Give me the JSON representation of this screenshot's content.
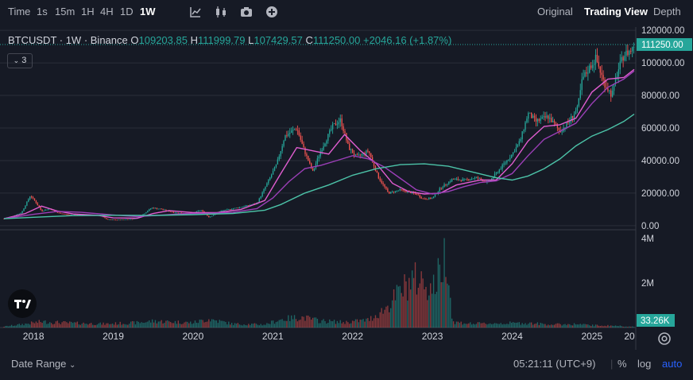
{
  "toolbar": {
    "intervals": [
      "Time",
      "1s",
      "15m",
      "1H",
      "4H",
      "1D",
      "1W"
    ],
    "active_interval": "1W",
    "icons": [
      "indicators-icon",
      "candle-type-icon",
      "camera-icon",
      "add-icon"
    ],
    "views": [
      "Original",
      "Trading View",
      "Depth"
    ],
    "active_view": "Trading View"
  },
  "legend": {
    "symbol": "BTCUSDT · 1W · Binance",
    "open_label": "O",
    "open": "109203.85",
    "high_label": "H",
    "high": "111999.79",
    "low_label": "L",
    "low": "107429.57",
    "close_label": "C",
    "close": "111250.00",
    "change": "+2046.16 (+1.87%)",
    "indicator_count": "3"
  },
  "colors": {
    "background": "#161a25",
    "up": "#26a69a",
    "down": "#ef5350",
    "ma_short": "#e05dd0",
    "ma_mid": "#9c3fb8",
    "ma_long": "#4cc3a8"
  },
  "chart_data": {
    "type": "candlestick",
    "interval": "1W",
    "price_axis": {
      "ticks": [
        "120000.00",
        "100000.00",
        "80000.00",
        "60000.00",
        "40000.00",
        "20000.00",
        "0.00"
      ],
      "range": [
        -2000,
        122000
      ],
      "last_price_label": "111250.00"
    },
    "time_axis": {
      "labels": [
        "2018",
        "2019",
        "2020",
        "2021",
        "2022",
        "2023",
        "2024",
        "2025",
        "20"
      ],
      "range": [
        2017.58,
        2025.55
      ]
    },
    "volume_axis": {
      "ticks": [
        "4M",
        "2M"
      ],
      "range": [
        0,
        4000000
      ],
      "last_volume_label": "33.26K"
    },
    "price_anchors": [
      [
        2017.63,
        4300
      ],
      [
        2017.75,
        6000
      ],
      [
        2017.85,
        8000
      ],
      [
        2017.96,
        18500
      ],
      [
        2018.02,
        15000
      ],
      [
        2018.1,
        9000
      ],
      [
        2018.2,
        10500
      ],
      [
        2018.3,
        8000
      ],
      [
        2018.45,
        6500
      ],
      [
        2018.6,
        6800
      ],
      [
        2018.85,
        6300
      ],
      [
        2018.92,
        3800
      ],
      [
        2019.05,
        3600
      ],
      [
        2019.25,
        4100
      ],
      [
        2019.35,
        6000
      ],
      [
        2019.48,
        11000
      ],
      [
        2019.6,
        10200
      ],
      [
        2019.75,
        8200
      ],
      [
        2019.95,
        7300
      ],
      [
        2020.1,
        9500
      ],
      [
        2020.2,
        5200
      ],
      [
        2020.35,
        9000
      ],
      [
        2020.6,
        11500
      ],
      [
        2020.8,
        13500
      ],
      [
        2020.95,
        28000
      ],
      [
        2021.05,
        38000
      ],
      [
        2021.15,
        55000
      ],
      [
        2021.3,
        60000
      ],
      [
        2021.38,
        48000
      ],
      [
        2021.5,
        33000
      ],
      [
        2021.6,
        46000
      ],
      [
        2021.75,
        61000
      ],
      [
        2021.85,
        65000
      ],
      [
        2021.95,
        48000
      ],
      [
        2022.05,
        42000
      ],
      [
        2022.2,
        46000
      ],
      [
        2022.32,
        30000
      ],
      [
        2022.45,
        20000
      ],
      [
        2022.6,
        22000
      ],
      [
        2022.8,
        19500
      ],
      [
        2022.88,
        16500
      ],
      [
        2023.0,
        16800
      ],
      [
        2023.1,
        23000
      ],
      [
        2023.25,
        28500
      ],
      [
        2023.4,
        28000
      ],
      [
        2023.55,
        29500
      ],
      [
        2023.7,
        26500
      ],
      [
        2023.85,
        35000
      ],
      [
        2024.0,
        44000
      ],
      [
        2024.1,
        52000
      ],
      [
        2024.2,
        69000
      ],
      [
        2024.3,
        64000
      ],
      [
        2024.45,
        67000
      ],
      [
        2024.6,
        58000
      ],
      [
        2024.7,
        63000
      ],
      [
        2024.82,
        72000
      ],
      [
        2024.88,
        90000
      ],
      [
        2024.97,
        97000
      ],
      [
        2025.05,
        103000
      ],
      [
        2025.15,
        88000
      ],
      [
        2025.25,
        80000
      ],
      [
        2025.32,
        94000
      ],
      [
        2025.4,
        105000
      ],
      [
        2025.5,
        108000
      ],
      [
        2025.53,
        111250
      ]
    ],
    "series": [
      {
        "name": "",
        "color_key": "ma_short",
        "points": [
          [
            2017.63,
            4300
          ],
          [
            2017.9,
            7500
          ],
          [
            2018.1,
            12000
          ],
          [
            2018.3,
            9000
          ],
          [
            2018.5,
            7200
          ],
          [
            2018.8,
            6400
          ],
          [
            2019.0,
            4800
          ],
          [
            2019.3,
            4600
          ],
          [
            2019.5,
            7500
          ],
          [
            2019.7,
            9300
          ],
          [
            2020.0,
            8000
          ],
          [
            2020.3,
            8000
          ],
          [
            2020.6,
            10000
          ],
          [
            2020.9,
            15500
          ],
          [
            2021.1,
            32000
          ],
          [
            2021.3,
            48000
          ],
          [
            2021.5,
            46000
          ],
          [
            2021.7,
            44000
          ],
          [
            2021.9,
            56000
          ],
          [
            2022.1,
            46000
          ],
          [
            2022.3,
            38000
          ],
          [
            2022.5,
            26000
          ],
          [
            2022.7,
            21000
          ],
          [
            2022.9,
            19500
          ],
          [
            2023.1,
            20000
          ],
          [
            2023.3,
            25000
          ],
          [
            2023.6,
            28000
          ],
          [
            2023.8,
            28000
          ],
          [
            2024.0,
            38000
          ],
          [
            2024.2,
            52000
          ],
          [
            2024.4,
            61000
          ],
          [
            2024.6,
            62000
          ],
          [
            2024.8,
            66000
          ],
          [
            2025.0,
            82000
          ],
          [
            2025.2,
            90000
          ],
          [
            2025.4,
            91000
          ],
          [
            2025.53,
            96000
          ]
        ]
      },
      {
        "name": "",
        "color_key": "ma_mid",
        "points": [
          [
            2017.63,
            4300
          ],
          [
            2018.0,
            7000
          ],
          [
            2018.3,
            8800
          ],
          [
            2018.6,
            8200
          ],
          [
            2019.0,
            6600
          ],
          [
            2019.3,
            5600
          ],
          [
            2019.6,
            6500
          ],
          [
            2019.9,
            7400
          ],
          [
            2020.2,
            7600
          ],
          [
            2020.5,
            8200
          ],
          [
            2020.8,
            10500
          ],
          [
            2021.0,
            17000
          ],
          [
            2021.2,
            27000
          ],
          [
            2021.4,
            35000
          ],
          [
            2021.6,
            37000
          ],
          [
            2021.8,
            40000
          ],
          [
            2022.0,
            43000
          ],
          [
            2022.2,
            41000
          ],
          [
            2022.4,
            36000
          ],
          [
            2022.6,
            29000
          ],
          [
            2022.8,
            22000
          ],
          [
            2023.0,
            19500
          ],
          [
            2023.2,
            21000
          ],
          [
            2023.4,
            24000
          ],
          [
            2023.6,
            26500
          ],
          [
            2023.8,
            27500
          ],
          [
            2024.0,
            32000
          ],
          [
            2024.2,
            43000
          ],
          [
            2024.4,
            53000
          ],
          [
            2024.6,
            58000
          ],
          [
            2024.8,
            63000
          ],
          [
            2025.0,
            75000
          ],
          [
            2025.2,
            85000
          ],
          [
            2025.4,
            90000
          ],
          [
            2025.53,
            95000
          ]
        ]
      },
      {
        "name": "",
        "color_key": "ma_long",
        "points": [
          [
            2017.63,
            4300
          ],
          [
            2018.0,
            5200
          ],
          [
            2018.5,
            6200
          ],
          [
            2019.0,
            6400
          ],
          [
            2019.5,
            6300
          ],
          [
            2020.0,
            6800
          ],
          [
            2020.5,
            7500
          ],
          [
            2020.9,
            9500
          ],
          [
            2021.1,
            13000
          ],
          [
            2021.4,
            20000
          ],
          [
            2021.7,
            25000
          ],
          [
            2022.0,
            31000
          ],
          [
            2022.3,
            35000
          ],
          [
            2022.6,
            37500
          ],
          [
            2022.9,
            38000
          ],
          [
            2023.2,
            36500
          ],
          [
            2023.5,
            33000
          ],
          [
            2023.8,
            29500
          ],
          [
            2024.0,
            28000
          ],
          [
            2024.2,
            30500
          ],
          [
            2024.4,
            35000
          ],
          [
            2024.6,
            41000
          ],
          [
            2024.8,
            49000
          ],
          [
            2025.0,
            55000
          ],
          [
            2025.2,
            59000
          ],
          [
            2025.4,
            64000
          ],
          [
            2025.53,
            68500
          ]
        ]
      }
    ],
    "volume_anchors": [
      [
        2017.63,
        50000
      ],
      [
        2017.9,
        180000
      ],
      [
        2018.1,
        290000
      ],
      [
        2018.5,
        220000
      ],
      [
        2018.9,
        180000
      ],
      [
        2019.3,
        240000
      ],
      [
        2019.5,
        320000
      ],
      [
        2020.0,
        240000
      ],
      [
        2020.2,
        420000
      ],
      [
        2020.5,
        180000
      ],
      [
        2020.9,
        150000
      ],
      [
        2021.1,
        400000
      ],
      [
        2021.35,
        520000
      ],
      [
        2021.6,
        330000
      ],
      [
        2021.9,
        260000
      ],
      [
        2022.2,
        380000
      ],
      [
        2022.4,
        900000
      ],
      [
        2022.6,
        1800000
      ],
      [
        2022.75,
        2400000
      ],
      [
        2022.9,
        2300000
      ],
      [
        2023.0,
        1900000
      ],
      [
        2023.1,
        2800000
      ],
      [
        2023.18,
        4000000
      ],
      [
        2023.25,
        280000
      ],
      [
        2023.5,
        190000
      ],
      [
        2023.8,
        210000
      ],
      [
        2024.0,
        220000
      ],
      [
        2024.2,
        220000
      ],
      [
        2024.5,
        150000
      ],
      [
        2024.8,
        170000
      ],
      [
        2025.0,
        110000
      ],
      [
        2025.3,
        90000
      ],
      [
        2025.53,
        33260
      ]
    ]
  },
  "bottom": {
    "date_range": "Date Range",
    "clock": "05:21:11 (UTC+9)",
    "percent": "%",
    "log": "log",
    "auto": "auto"
  }
}
